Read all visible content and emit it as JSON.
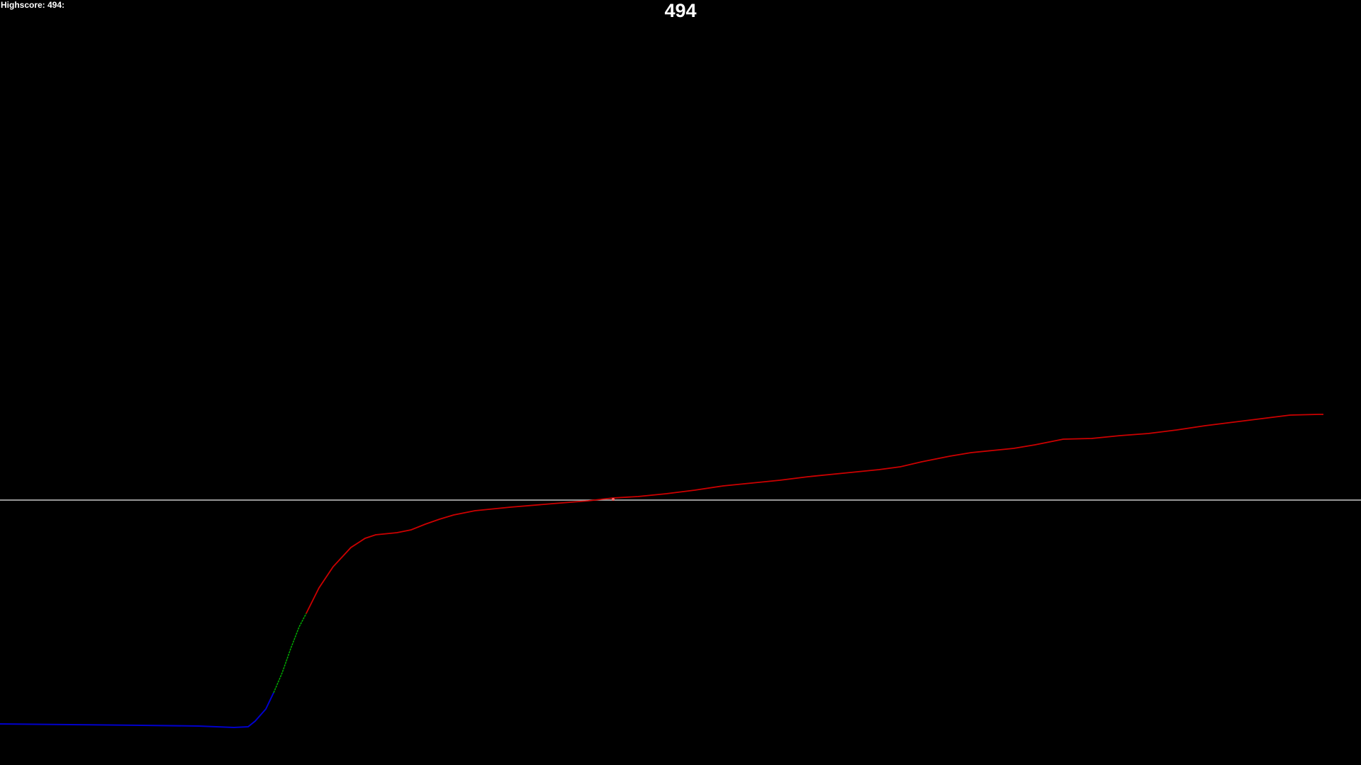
{
  "hud": {
    "highscore_label": "Highscore: 494:",
    "current_score": "494"
  },
  "colors": {
    "background": "#000000",
    "text": "#ffffff",
    "horizon_line": "#c8c8c8",
    "track_past": "#0000cc",
    "track_transition": "#00aa00",
    "track_recent": "#cc0000"
  },
  "track": {
    "segments": [
      "blue",
      "green",
      "red"
    ]
  }
}
